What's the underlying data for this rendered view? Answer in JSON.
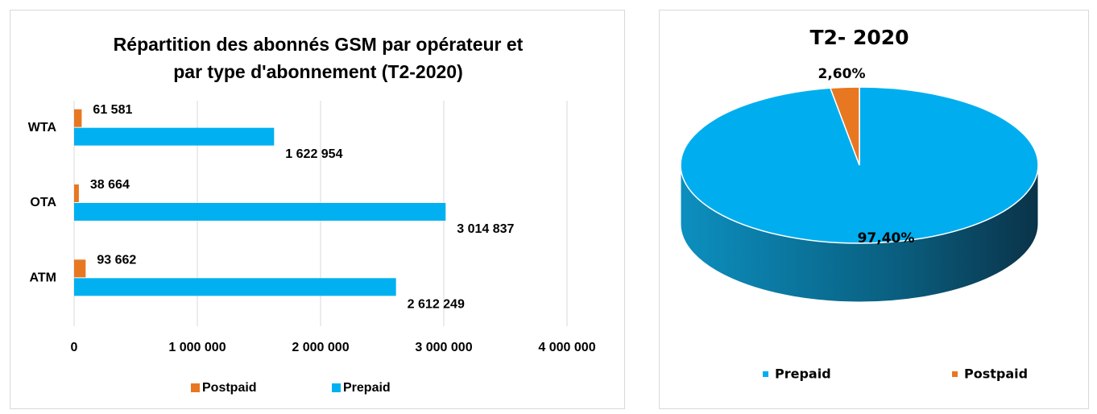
{
  "chart_data": [
    {
      "type": "hbar",
      "title": [
        "Répartition des abonnés GSM par opérateur et",
        "par type d'abonnement (T2-2020)"
      ],
      "categories": [
        "ATM",
        "OTA",
        "WTA"
      ],
      "series": [
        {
          "name": "Postpaid",
          "color": "#e87722",
          "values": [
            93662,
            38664,
            61581
          ],
          "value_labels": [
            "93 662",
            "38 664",
            "61 581"
          ]
        },
        {
          "name": "Prepaid",
          "color": "#00b0f0",
          "values": [
            2612249,
            3014837,
            1622954
          ],
          "value_labels": [
            "2 612 249",
            "3 014 837",
            "1 622 954"
          ]
        }
      ],
      "xlim": [
        0,
        4000000
      ],
      "xticks": [
        0,
        {
          "value": 1000000,
          "label": "1 000 000"
        },
        {
          "value": 2000000,
          "label": "2 000 000"
        },
        {
          "value": 3000000,
          "label": "3 000 000"
        },
        {
          "value": 4000000,
          "label": "4 000 000"
        }
      ],
      "grid": true,
      "legend": "bottom"
    },
    {
      "type": "pie3d",
      "title": "T2- 2020",
      "categories": [
        "Prepaid",
        "Postpaid"
      ],
      "values": [
        97.4,
        2.6
      ],
      "value_labels": [
        "97,40%",
        "2,60%"
      ],
      "colors": [
        "#00aeef",
        "#e87722"
      ],
      "legend": "bottom"
    }
  ]
}
